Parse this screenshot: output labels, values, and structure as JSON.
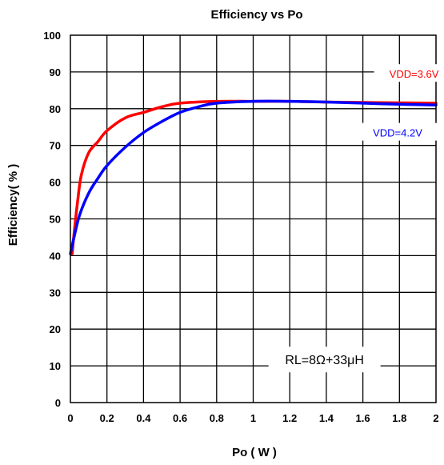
{
  "chart_data": {
    "type": "line",
    "title": "Efficiency vs Po",
    "xlabel": "Po ( W )",
    "ylabel": "Efficiency( % )",
    "xlim": [
      0,
      2
    ],
    "ylim": [
      0,
      100
    ],
    "x_ticks": [
      "0",
      "0.2",
      "0.4",
      "0.6",
      "0.8",
      "1",
      "1.2",
      "1.4",
      "1.6",
      "1.8",
      "2"
    ],
    "y_ticks": [
      "0",
      "10",
      "20",
      "30",
      "40",
      "50",
      "60",
      "70",
      "80",
      "90",
      "100"
    ],
    "grid": true,
    "series": [
      {
        "name": "VDD=3.6V",
        "color": "#ff0000",
        "x": [
          0.01,
          0.02,
          0.04,
          0.06,
          0.1,
          0.15,
          0.2,
          0.3,
          0.4,
          0.5,
          0.6,
          0.8,
          1.0,
          1.2,
          1.4,
          1.6,
          1.8,
          2.0
        ],
        "y": [
          40.5,
          46,
          55,
          62,
          68,
          71,
          74,
          77.5,
          79,
          80.5,
          81.5,
          82,
          82,
          82,
          81.8,
          81.7,
          81.6,
          81.5
        ]
      },
      {
        "name": "VDD=4.2V",
        "color": "#0000ff",
        "x": [
          0.0,
          0.02,
          0.05,
          0.1,
          0.15,
          0.2,
          0.3,
          0.4,
          0.5,
          0.6,
          0.7,
          0.8,
          1.0,
          1.2,
          1.4,
          1.6,
          1.8,
          2.0
        ],
        "y": [
          40.5,
          45,
          51,
          57,
          61,
          64.5,
          69.5,
          73.5,
          76.5,
          79,
          80.5,
          81.5,
          82,
          82,
          81.8,
          81.5,
          81.2,
          81
        ]
      }
    ],
    "annotation": "RL=8Ω+33μH"
  }
}
